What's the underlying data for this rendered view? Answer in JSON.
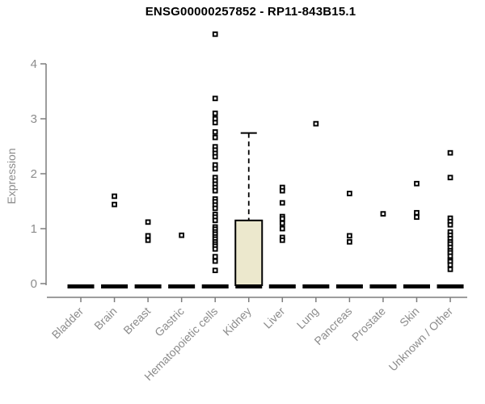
{
  "page": {
    "background": "#ffffff"
  },
  "chart_data": {
    "type": "boxplot",
    "title": "ENSG00000257852 - RP11-843B15.1",
    "ylabel": "Expression",
    "xlabel": "",
    "ylim": [
      0,
      4
    ],
    "yticks": [
      0,
      1,
      2,
      3,
      4
    ],
    "grid": false,
    "legend": "none",
    "categories": [
      "Bladder",
      "Brain",
      "Breast",
      "Gastric",
      "Hematopoietic cells",
      "Kidney",
      "Liver",
      "Lung",
      "Pancreas",
      "Prostate",
      "Skin",
      "Unknown / Other"
    ],
    "boxes": [
      {
        "category": "Bladder",
        "q1": 0,
        "median": 0,
        "q3": 0,
        "whisker_low": 0,
        "whisker_high": 0,
        "points": []
      },
      {
        "category": "Brain",
        "q1": 0,
        "median": 0,
        "q3": 0,
        "whisker_low": 0,
        "whisker_high": 0,
        "points": [
          1.59,
          1.44
        ]
      },
      {
        "category": "Breast",
        "q1": 0,
        "median": 0,
        "q3": 0,
        "whisker_low": 0,
        "whisker_high": 0,
        "points": [
          1.12,
          0.87,
          0.79
        ]
      },
      {
        "category": "Gastric",
        "q1": 0,
        "median": 0,
        "q3": 0,
        "whisker_low": 0,
        "whisker_high": 0,
        "points": [
          0.88
        ]
      },
      {
        "category": "Hematopoietic cells",
        "q1": 0,
        "median": 0,
        "q3": 0,
        "whisker_low": 0,
        "whisker_high": 0,
        "points": [
          4.54,
          3.37,
          3.1,
          3.0,
          2.93,
          2.76,
          2.66,
          2.49,
          2.43,
          2.37,
          2.31,
          2.16,
          2.09,
          1.93,
          1.87,
          1.81,
          1.75,
          1.69,
          1.54,
          1.49,
          1.43,
          1.37,
          1.26,
          1.21,
          1.15,
          1.03,
          0.99,
          0.94,
          0.9,
          0.85,
          0.81,
          0.76,
          0.72,
          0.68,
          0.63,
          0.49,
          0.41,
          0.24
        ]
      },
      {
        "category": "Kidney",
        "q1": 0,
        "median": 0,
        "q3": 1.15,
        "whisker_low": 0,
        "whisker_high": 2.74,
        "points": []
      },
      {
        "category": "Liver",
        "q1": 0,
        "median": 0,
        "q3": 0,
        "whisker_low": 0,
        "whisker_high": 0,
        "points": [
          1.75,
          1.69,
          1.47,
          1.22,
          1.18,
          1.1,
          1.0,
          0.84,
          0.79
        ]
      },
      {
        "category": "Lung",
        "q1": 0,
        "median": 0,
        "q3": 0,
        "whisker_low": 0,
        "whisker_high": 0,
        "points": [
          2.91
        ]
      },
      {
        "category": "Pancreas",
        "q1": 0,
        "median": 0,
        "q3": 0,
        "whisker_low": 0,
        "whisker_high": 0,
        "points": [
          1.64,
          0.87,
          0.76
        ]
      },
      {
        "category": "Prostate",
        "q1": 0,
        "median": 0,
        "q3": 0,
        "whisker_low": 0,
        "whisker_high": 0,
        "points": [
          1.27
        ]
      },
      {
        "category": "Skin",
        "q1": 0,
        "median": 0,
        "q3": 0,
        "whisker_low": 0,
        "whisker_high": 0,
        "points": [
          1.82,
          1.29,
          1.21
        ]
      },
      {
        "category": "Unknown / Other",
        "q1": 0,
        "median": 0,
        "q3": 0,
        "whisker_low": 0,
        "whisker_high": 0,
        "points": [
          2.38,
          1.93,
          1.19,
          1.13,
          1.07,
          0.94,
          0.88,
          0.82,
          0.76,
          0.72,
          0.66,
          0.6,
          0.56,
          0.5,
          0.43,
          0.4,
          0.34,
          0.26
        ]
      }
    ],
    "colors": {
      "box_fill": "#ece8cd",
      "box_stroke": "#000000",
      "median_bar": "#000000",
      "point_stroke": "#000000",
      "point_fill": "#ffffff",
      "axis": "#7d7d7d",
      "tick_label": "#8c8c8c",
      "title": "#000000"
    }
  }
}
